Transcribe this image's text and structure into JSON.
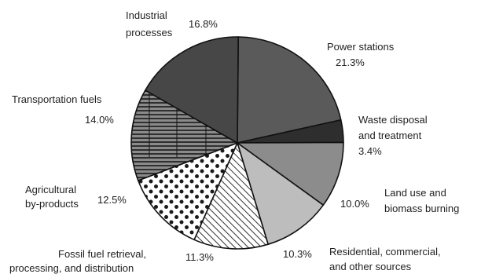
{
  "chart_data": {
    "type": "pie",
    "slices": [
      {
        "label": "Power stations",
        "value": 21.3,
        "value_label": "21.3%",
        "fill": "#5a5a5a",
        "pattern": "solid"
      },
      {
        "label": "Waste disposal and treatment",
        "value": 3.4,
        "value_label": "3.4%",
        "fill": "#2e2e2e",
        "pattern": "solid"
      },
      {
        "label": "Land use and biomass burning",
        "value": 10.0,
        "value_label": "10.0%",
        "fill": "#8c8c8c",
        "pattern": "solid"
      },
      {
        "label": "Residential, commercial, and other sources",
        "value": 10.3,
        "value_label": "10.3%",
        "fill": "#bdbdbd",
        "pattern": "solid"
      },
      {
        "label": "Fossil fuel retrieval, processing, and distribution",
        "value": 11.3,
        "value_label": "11.3%",
        "fill": "#ffffff",
        "pattern": "diagonal-hatch"
      },
      {
        "label": "Agricultural by-products",
        "value": 12.5,
        "value_label": "12.5%",
        "fill": "#ffffff",
        "pattern": "dots"
      },
      {
        "label": "Transportation fuels",
        "value": 14.0,
        "value_label": "14.0%",
        "fill": "#7a7a7a",
        "pattern": "horizontal-lines"
      },
      {
        "label": "Industrial processes",
        "value": 16.8,
        "value_label": "16.8%",
        "fill": "#474747",
        "pattern": "solid"
      }
    ],
    "label_lines": {
      "power": [
        "Power stations",
        "21.3%"
      ],
      "waste": [
        "Waste disposal",
        "and treatment",
        "3.4%"
      ],
      "land": [
        "Land use and",
        "biomass burning"
      ],
      "land_value": "10.0%",
      "residential": [
        "Residential, commercial,",
        "and other sources"
      ],
      "residential_value": "10.3%",
      "fossil": [
        "Fossil fuel retrieval,",
        "processing, and distribution"
      ],
      "fossil_value": "11.3%",
      "agri": [
        "Agricultural",
        "by-products"
      ],
      "agri_value": "12.5%",
      "transport": [
        "Transportation fuels",
        "14.0%"
      ],
      "industrial": [
        "Industrial",
        "processes"
      ],
      "industrial_value": "16.8%"
    }
  }
}
